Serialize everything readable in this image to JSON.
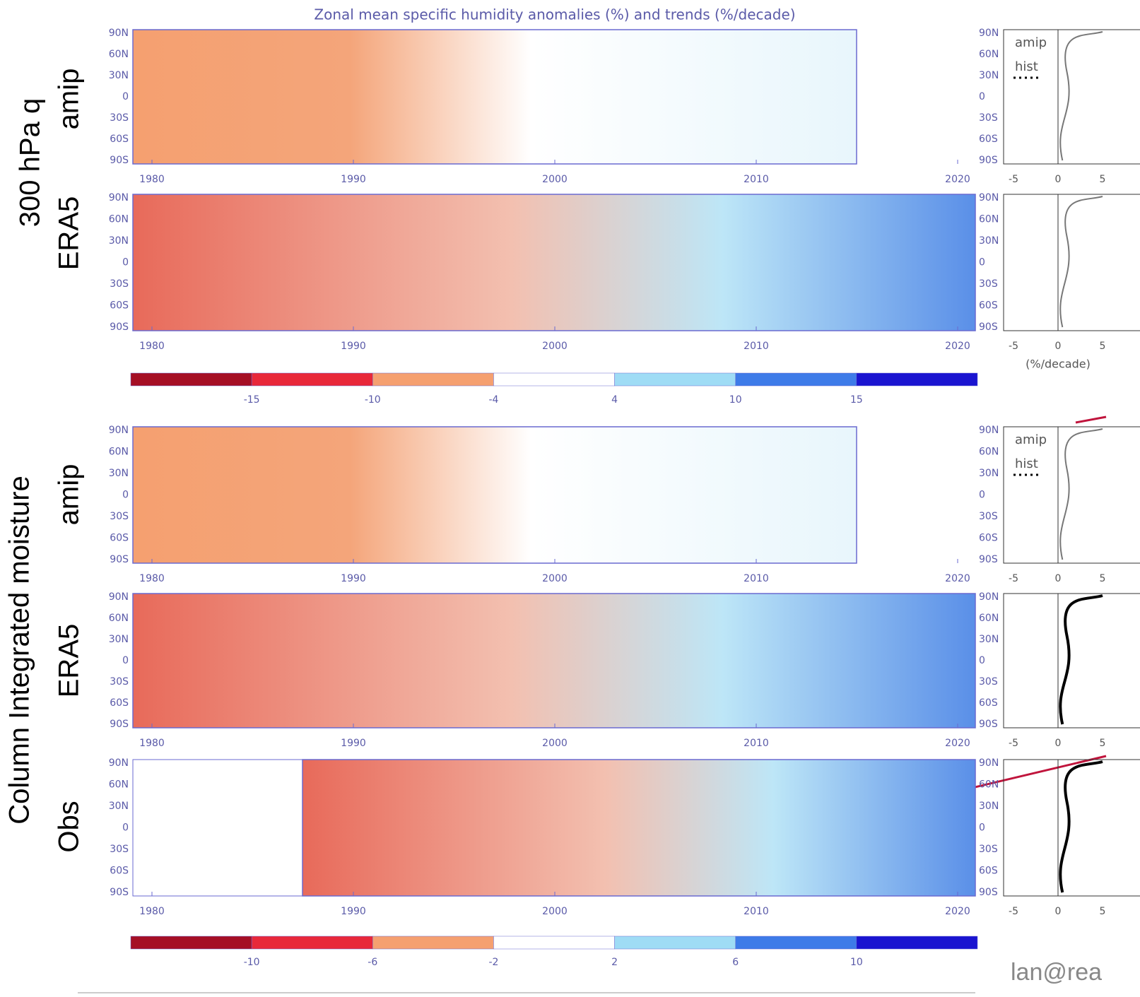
{
  "title": "Zonal mean specific humidity anomalies (%) and trends (%/decade)",
  "group_labels": [
    "300 hPa q",
    "Column Integrated moisture"
  ],
  "panels": [
    {
      "label": "amip"
    },
    {
      "label": "ERA5"
    },
    {
      "label": "amip"
    },
    {
      "label": "ERA5"
    },
    {
      "label": "Obs"
    }
  ],
  "year_ticks": [
    1980,
    1990,
    2000,
    2010,
    2020
  ],
  "lat_ticks": [
    "90N",
    "60N",
    "30N",
    "0",
    "30S",
    "60S",
    "90S"
  ],
  "profile_ticks": [
    -5,
    0,
    5
  ],
  "profile_legend": [
    "amip",
    "hist"
  ],
  "profile_xlabel": "(%/decade)",
  "colorbars": [
    {
      "ticks": [
        -15,
        -10,
        -4,
        4,
        10,
        15
      ],
      "colors": [
        "#a50f25",
        "#e8283a",
        "#f5a070",
        "#ffffff",
        "#9fdcf5",
        "#3e7be8",
        "#1a14d0"
      ]
    },
    {
      "ticks": [
        -10,
        -6,
        -2,
        2,
        6,
        10
      ],
      "colors": [
        "#a50f25",
        "#e8283a",
        "#f5a070",
        "#ffffff",
        "#9fdcf5",
        "#3e7be8",
        "#1a14d0"
      ]
    }
  ],
  "footer": "lan@rea"
}
